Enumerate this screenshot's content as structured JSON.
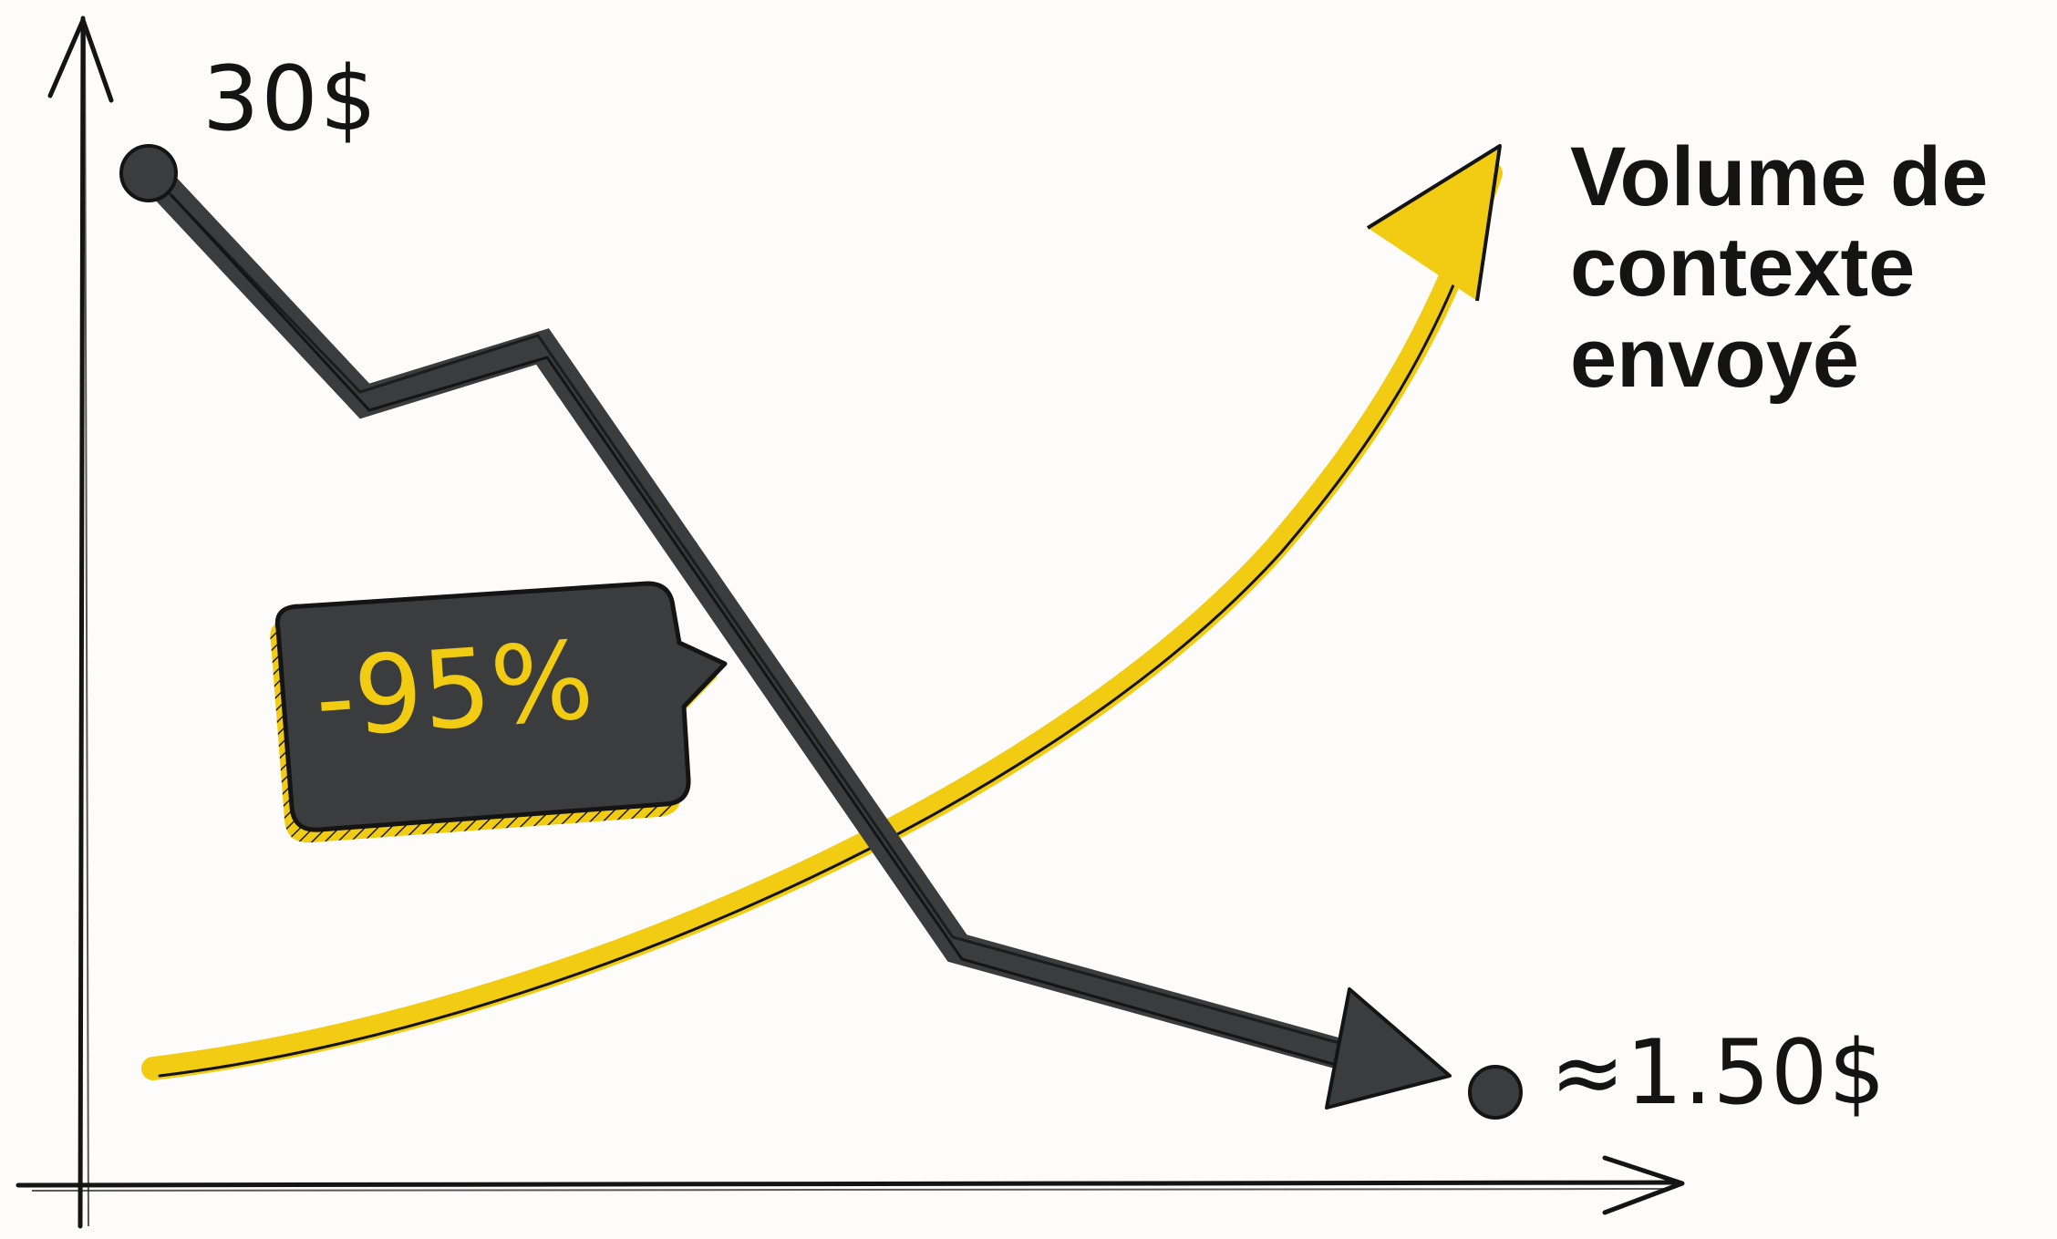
{
  "labels": {
    "start_value": "30$",
    "end_value": "≈1.50$",
    "reduction": "-95%",
    "volume_line1": "Volume de",
    "volume_line2": "contexte",
    "volume_line3": "envoyé"
  },
  "colors": {
    "background": "#fdfcfa",
    "ink": "#141414",
    "cost_line": "#3b3c3e",
    "accent_yellow": "#f2cc12",
    "bubble_fill": "#3b3c3e",
    "bubble_text": "#f2cc12"
  },
  "icons": {
    "y_axis": "arrow-up",
    "x_axis": "arrow-right",
    "cost_trend": "down-arrow",
    "volume_trend": "up-arrow"
  }
}
